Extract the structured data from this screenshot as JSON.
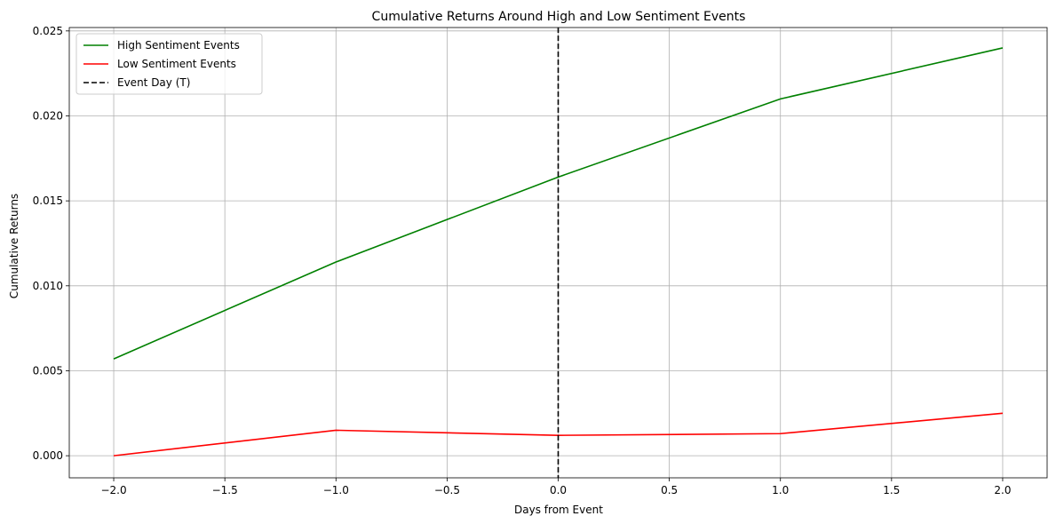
{
  "chart_data": {
    "type": "line",
    "title": "Cumulative Returns Around High and Low Sentiment Events",
    "xlabel": "Days from Event",
    "ylabel": "Cumulative Returns",
    "x": [
      -2,
      -1,
      0,
      1,
      2
    ],
    "xlim": [
      -2.2,
      2.2
    ],
    "ylim": [
      -0.0013,
      0.0252
    ],
    "xticks": [
      -2.0,
      -1.5,
      -1.0,
      -0.5,
      0.0,
      0.5,
      1.0,
      1.5,
      2.0
    ],
    "xtick_labels": [
      "−2.0",
      "−1.5",
      "−1.0",
      "−0.5",
      "0.0",
      "0.5",
      "1.0",
      "1.5",
      "2.0"
    ],
    "yticks": [
      0.0,
      0.005,
      0.01,
      0.015,
      0.02,
      0.025
    ],
    "ytick_labels": [
      "0.000",
      "0.005",
      "0.010",
      "0.015",
      "0.020",
      "0.025"
    ],
    "grid": true,
    "legend_position": "upper-left",
    "series": [
      {
        "name": "High Sentiment Events",
        "color": "#008000",
        "values": [
          0.0057,
          0.0114,
          0.0164,
          0.021,
          0.024
        ]
      },
      {
        "name": "Low Sentiment Events",
        "color": "#ff0000",
        "values": [
          0.0,
          0.0015,
          0.0012,
          0.0013,
          0.0025
        ]
      }
    ],
    "vline": {
      "name": "Event Day (T)",
      "x": 0,
      "color": "#000000",
      "style": "dashed"
    }
  }
}
